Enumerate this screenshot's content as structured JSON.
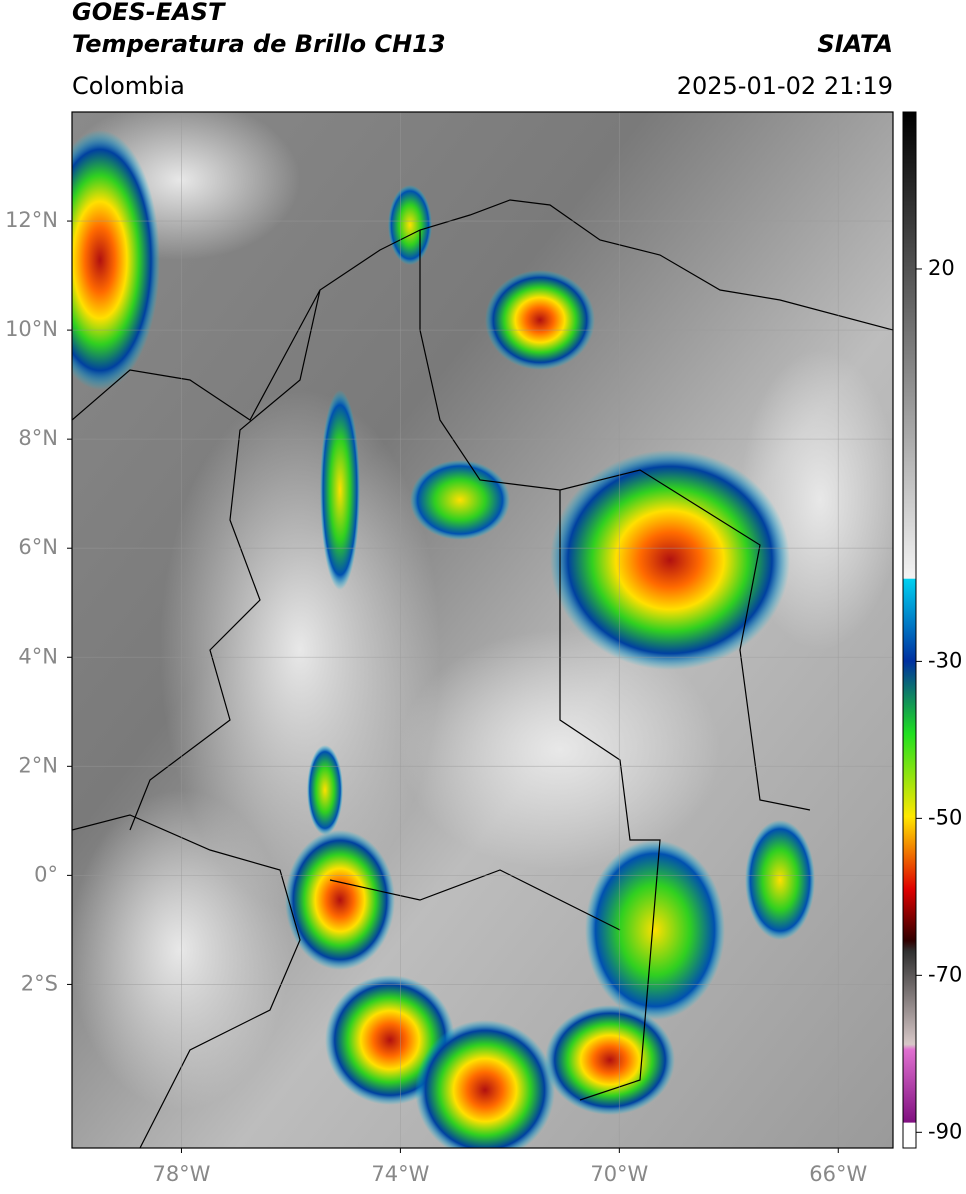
{
  "header": {
    "title": "GOES-EAST",
    "subtitle": "Temperatura de Brillo CH13",
    "source": "SIATA",
    "region": "Colombia",
    "timestamp": "2025-01-02 21:19"
  },
  "map": {
    "xlim": [
      -80,
      -65
    ],
    "ylim": [
      -5,
      14
    ],
    "grid": true,
    "lat_ticks": [
      {
        "value": 12,
        "label": "12°N"
      },
      {
        "value": 10,
        "label": "10°N"
      },
      {
        "value": 8,
        "label": "8°N"
      },
      {
        "value": 6,
        "label": "6°N"
      },
      {
        "value": 4,
        "label": "4°N"
      },
      {
        "value": 2,
        "label": "2°N"
      },
      {
        "value": 0,
        "label": "0°"
      },
      {
        "value": -2,
        "label": "2°S"
      }
    ],
    "lon_ticks": [
      {
        "value": -78,
        "label": "78°W"
      },
      {
        "value": -74,
        "label": "74°W"
      },
      {
        "value": -70,
        "label": "70°W"
      },
      {
        "value": -66,
        "label": "66°W"
      }
    ]
  },
  "colorbar": {
    "lim": [
      -92,
      40
    ],
    "ticks": [
      20,
      -30,
      -50,
      -70,
      -90
    ]
  }
}
